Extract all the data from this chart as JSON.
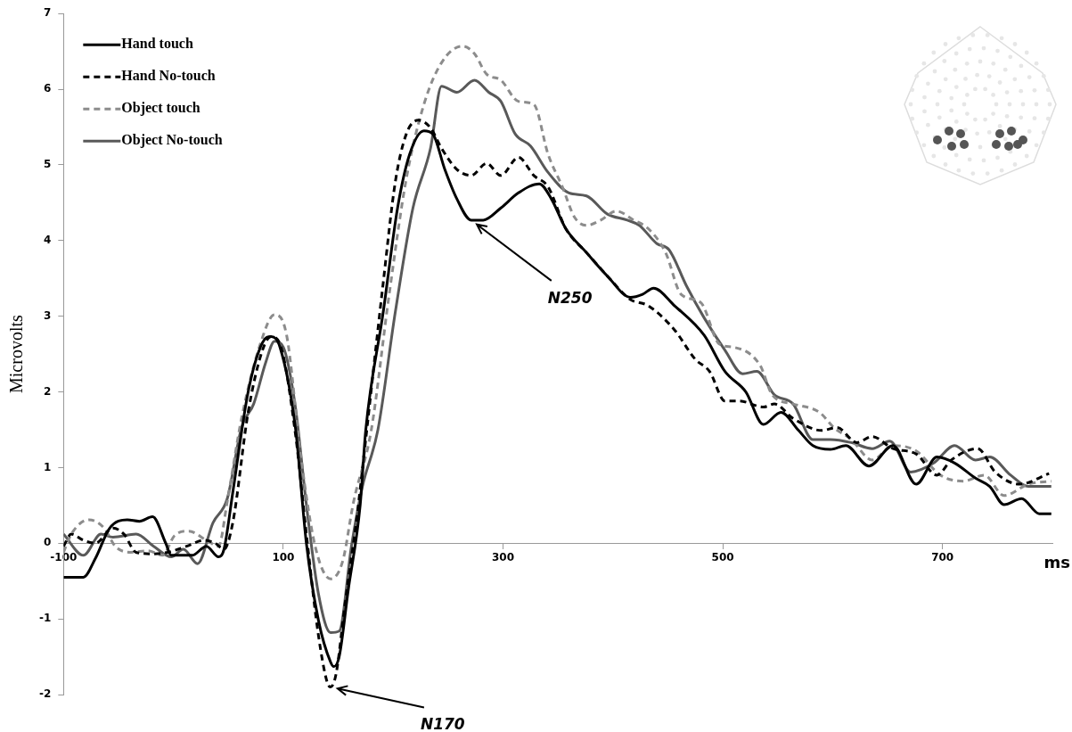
{
  "chart_data": {
    "type": "line",
    "xlabel": "ms",
    "ylabel": "Microvolts",
    "xlim": [
      -100,
      800
    ],
    "ylim": [
      -2,
      7
    ],
    "xticks": [
      -100,
      100,
      300,
      500,
      700
    ],
    "yticks": [
      -2,
      -1,
      0,
      1,
      2,
      3,
      4,
      5,
      6,
      7
    ],
    "grid": false,
    "legend": "top left",
    "marker": "none",
    "annotations": [
      {
        "text": "N170",
        "x": 143,
        "y": -1.9
      },
      {
        "text": "N250",
        "x": 271,
        "y": 4.27
      }
    ],
    "series": [
      {
        "name": "Hand touch",
        "color": "#000000",
        "line_style": "solid",
        "x": [
          -100,
          -82,
          -71,
          -58,
          -42,
          -31,
          -19,
          -7,
          -2,
          17,
          30,
          41,
          46,
          54,
          68,
          81,
          89,
          97,
          111,
          121,
          132,
          143,
          146,
          151,
          159,
          170,
          175,
          191,
          204,
          215,
          228,
          236,
          247,
          258,
          271,
          282,
          298,
          314,
          333,
          344,
          357,
          376,
          395,
          416,
          427,
          437,
          456,
          483,
          502,
          521,
          537,
          553,
          569,
          582,
          598,
          612,
          633,
          655,
          676,
          695,
          711,
          730,
          743,
          756,
          772,
          788,
          799
        ],
        "values": [
          -0.45,
          -0.45,
          -0.2,
          0.2,
          0.31,
          0.29,
          0.35,
          0,
          -0.16,
          -0.16,
          -0.04,
          -0.18,
          -0.08,
          0.67,
          2.0,
          2.65,
          2.73,
          2.59,
          1.53,
          0,
          -1.02,
          -1.57,
          -1.63,
          -1.49,
          -0.63,
          0.51,
          1.49,
          3.06,
          4.43,
          5.14,
          5.45,
          5.41,
          4.94,
          4.55,
          4.27,
          4.27,
          4.43,
          4.63,
          4.75,
          4.55,
          4.16,
          3.84,
          3.53,
          3.25,
          3.29,
          3.37,
          3.14,
          2.75,
          2.27,
          2.0,
          1.57,
          1.73,
          1.49,
          1.29,
          1.24,
          1.29,
          1.02,
          1.29,
          0.78,
          1.14,
          1.06,
          0.86,
          0.75,
          0.51,
          0.59,
          0.39,
          0.39
        ]
      },
      {
        "name": "Hand No-touch",
        "color": "#000000",
        "line_style": "dashed",
        "x": [
          -100,
          -93,
          -82,
          -71,
          -55,
          -45,
          -34,
          -18,
          -5,
          12,
          28,
          38,
          46,
          54,
          68,
          81,
          89,
          97,
          111,
          121,
          132,
          140,
          143,
          148,
          156,
          167,
          175,
          191,
          202,
          212,
          223,
          234,
          244,
          258,
          271,
          285,
          298,
          314,
          328,
          341,
          357,
          376,
          395,
          416,
          432,
          456,
          475,
          488,
          502,
          515,
          537,
          547,
          564,
          590,
          604,
          622,
          636,
          655,
          676,
          695,
          708,
          732,
          748,
          770,
          797
        ],
        "values": [
          -0.04,
          0.12,
          0.04,
          0,
          0.2,
          0.12,
          -0.12,
          -0.14,
          -0.12,
          -0.04,
          0.04,
          0,
          -0.08,
          0.27,
          1.73,
          2.55,
          2.73,
          2.63,
          1.45,
          0.12,
          -1.22,
          -1.84,
          -1.9,
          -1.73,
          -0.82,
          0.35,
          1.37,
          3.45,
          4.78,
          5.41,
          5.59,
          5.49,
          5.22,
          4.94,
          4.86,
          5.02,
          4.86,
          5.1,
          4.86,
          4.71,
          4.16,
          3.84,
          3.53,
          3.22,
          3.14,
          2.82,
          2.43,
          2.27,
          1.88,
          1.88,
          1.8,
          1.84,
          1.65,
          1.49,
          1.53,
          1.33,
          1.41,
          1.25,
          1.18,
          0.9,
          1.1,
          1.25,
          0.94,
          0.78,
          0.92
        ]
      },
      {
        "name": "Object touch",
        "color": "#8c8c8c",
        "line_style": "dashed",
        "x": [
          -100,
          -93,
          -77,
          -63,
          -53,
          -39,
          -23,
          -10,
          1,
          14,
          30,
          41,
          49,
          62,
          79,
          92,
          103,
          116,
          129,
          143,
          154,
          164,
          180,
          196,
          212,
          228,
          244,
          263,
          274,
          285,
          298,
          314,
          328,
          341,
          354,
          365,
          376,
          389,
          403,
          419,
          432,
          448,
          462,
          480,
          497,
          510,
          534,
          545,
          564,
          588,
          601,
          617,
          636,
          655,
          676,
          698,
          719,
          738,
          756,
          778,
          799
        ],
        "values": [
          -0.12,
          0.12,
          0.31,
          0.2,
          -0.04,
          -0.12,
          -0.1,
          -0.16,
          0.1,
          0.16,
          0.04,
          -0.04,
          0.55,
          1.65,
          2.63,
          3.02,
          2.75,
          1.14,
          -0.04,
          -0.47,
          -0.24,
          0.55,
          1.49,
          3.25,
          4.82,
          5.8,
          6.35,
          6.57,
          6.47,
          6.2,
          6.12,
          5.84,
          5.8,
          5.14,
          4.71,
          4.31,
          4.2,
          4.27,
          4.39,
          4.27,
          4.16,
          3.84,
          3.29,
          3.18,
          2.63,
          2.59,
          2.35,
          1.96,
          1.84,
          1.73,
          1.53,
          1.37,
          1.1,
          1.29,
          1.22,
          0.9,
          0.82,
          0.9,
          0.63,
          0.78,
          0.82
        ]
      },
      {
        "name": "Object No-touch",
        "color": "#595959",
        "line_style": "solid",
        "x": [
          -100,
          -82,
          -66,
          -55,
          -34,
          -18,
          -2,
          9,
          22,
          36,
          49,
          62,
          73,
          84,
          92,
          100,
          111,
          121,
          132,
          143,
          151,
          162,
          172,
          186,
          202,
          218,
          234,
          244,
          258,
          274,
          287,
          298,
          311,
          325,
          341,
          360,
          376,
          395,
          413,
          424,
          440,
          451,
          467,
          483,
          502,
          518,
          531,
          547,
          564,
          582,
          598,
          617,
          636,
          652,
          671,
          692,
          711,
          730,
          743,
          762,
          778,
          799
        ],
        "values": [
          0.12,
          -0.16,
          0.12,
          0.08,
          0.12,
          -0.04,
          -0.18,
          -0.08,
          -0.27,
          0.27,
          0.59,
          1.53,
          1.84,
          2.39,
          2.67,
          2.59,
          1.8,
          0.51,
          -0.67,
          -1.18,
          -1.16,
          -0.04,
          0.75,
          1.49,
          3.06,
          4.43,
          5.22,
          6.04,
          5.96,
          6.12,
          5.96,
          5.84,
          5.41,
          5.25,
          4.9,
          4.63,
          4.59,
          4.35,
          4.27,
          4.2,
          3.96,
          3.88,
          3.4,
          2.98,
          2.55,
          2.24,
          2.27,
          1.96,
          1.84,
          1.37,
          1.37,
          1.33,
          1.25,
          1.35,
          0.94,
          1.06,
          1.29,
          1.1,
          1.14,
          0.9,
          0.75,
          0.75
        ]
      }
    ]
  }
}
